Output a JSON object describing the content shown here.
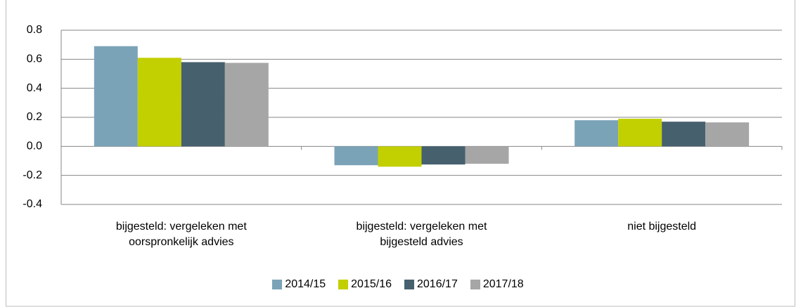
{
  "chart_data": {
    "type": "bar",
    "categories": [
      "bijgesteld: vergeleken met oorspronkelijk advies",
      "bijgesteld: vergeleken met bijgesteld advies",
      "niet bijgesteld"
    ],
    "series": [
      {
        "name": "2014/15",
        "color": "#7ba3b8",
        "values": [
          0.69,
          -0.13,
          0.18
        ]
      },
      {
        "name": "2015/16",
        "color": "#c2cf00",
        "values": [
          0.61,
          -0.14,
          0.19
        ]
      },
      {
        "name": "2016/17",
        "color": "#46606e",
        "values": [
          0.58,
          -0.125,
          0.17
        ]
      },
      {
        "name": "2017/18",
        "color": "#a6a6a6",
        "values": [
          0.575,
          -0.12,
          0.165
        ]
      }
    ],
    "ylim": [
      -0.4,
      0.8
    ],
    "yticks": [
      -0.4,
      -0.2,
      {
        "value": 0,
        "label": "0.0"
      },
      0.2,
      0.4,
      0.6,
      0.8
    ],
    "grid": true,
    "legend": "bottom"
  }
}
